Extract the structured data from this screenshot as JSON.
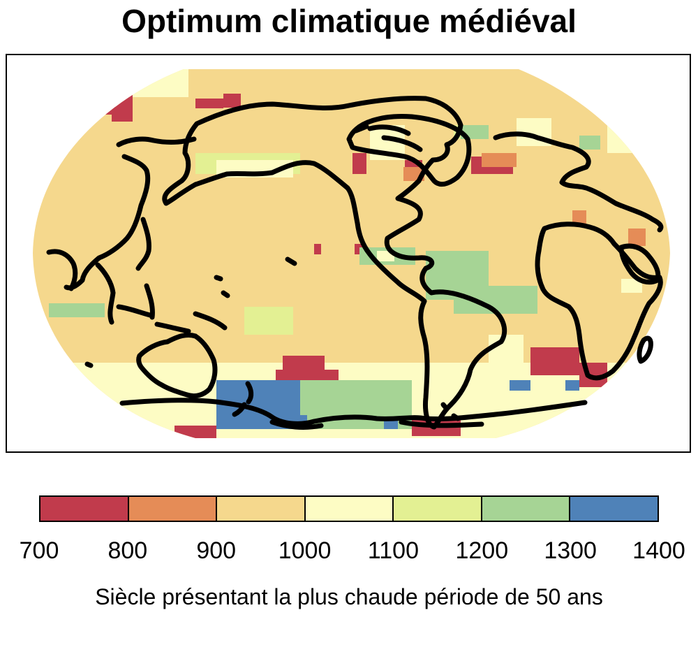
{
  "title": "Optimum climatique médiéval",
  "legend": {
    "label": "Siècle présentant la plus chaude période de 50 ans",
    "ticks": [
      "700",
      "800",
      "900",
      "1000",
      "1100",
      "1200",
      "1300",
      "1400"
    ],
    "bins": [
      {
        "range": [
          700,
          800
        ],
        "color": "#c13b4c"
      },
      {
        "range": [
          800,
          900
        ],
        "color": "#e58c57"
      },
      {
        "range": [
          900,
          1000
        ],
        "color": "#f5d88d"
      },
      {
        "range": [
          1000,
          1100
        ],
        "color": "#fdfcc4"
      },
      {
        "range": [
          1100,
          1200
        ],
        "color": "#e3f093"
      },
      {
        "range": [
          1200,
          1300
        ],
        "color": "#a6d495"
      },
      {
        "range": [
          1300,
          1400
        ],
        "color": "#4f82b8"
      }
    ]
  },
  "map": {
    "projection": "Robinson",
    "center": "Pacific",
    "background_color": "#f5d88d",
    "coastline_color": "#000000"
  }
}
